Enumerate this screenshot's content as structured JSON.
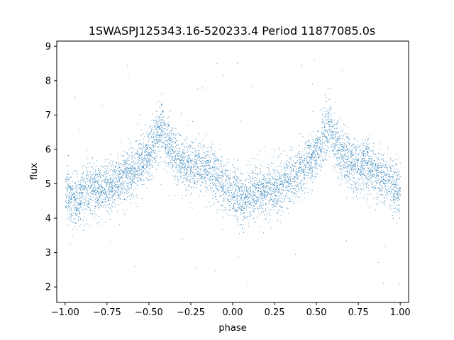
{
  "chart_data": {
    "type": "scatter",
    "title": "1SWASPJ125343.16-520233.4 Period 11877085.0s",
    "xlabel": "phase",
    "ylabel": "flux",
    "xlim": [
      -1.05,
      1.05
    ],
    "ylim": [
      1.55,
      9.15
    ],
    "xticks": [
      -1.0,
      -0.75,
      -0.5,
      -0.25,
      0.0,
      0.25,
      0.5,
      0.75,
      1.0
    ],
    "xtick_labels": [
      "−1.00",
      "−0.75",
      "−0.50",
      "−0.25",
      "0.00",
      "0.25",
      "0.50",
      "0.75",
      "1.00"
    ],
    "yticks": [
      2,
      3,
      4,
      5,
      6,
      7,
      8,
      9
    ],
    "ytick_labels": [
      "2",
      "3",
      "4",
      "5",
      "6",
      "7",
      "8",
      "9"
    ],
    "grid": false,
    "legend": "none",
    "marker_color": "#1f77b4",
    "series": [
      {
        "x_range": [
          -1.0,
          1.0
        ],
        "period_phase": 1.0,
        "trend_profile": [
          [
            0.0,
            4.8
          ],
          [
            0.05,
            4.5
          ],
          [
            0.1,
            4.7
          ],
          [
            0.15,
            4.9
          ],
          [
            0.2,
            4.85
          ],
          [
            0.25,
            4.9
          ],
          [
            0.3,
            5.0
          ],
          [
            0.35,
            5.2
          ],
          [
            0.4,
            5.4
          ],
          [
            0.45,
            5.6
          ],
          [
            0.5,
            5.9
          ],
          [
            0.55,
            6.4
          ],
          [
            0.58,
            6.8
          ],
          [
            0.6,
            6.2
          ],
          [
            0.65,
            5.9
          ],
          [
            0.7,
            5.6
          ],
          [
            0.75,
            5.5
          ],
          [
            0.8,
            5.6
          ],
          [
            0.85,
            5.4
          ],
          [
            0.9,
            5.2
          ],
          [
            0.95,
            5.0
          ],
          [
            1.0,
            4.8
          ]
        ],
        "scatter_half_width": 0.7,
        "point_count": 6000
      }
    ]
  }
}
